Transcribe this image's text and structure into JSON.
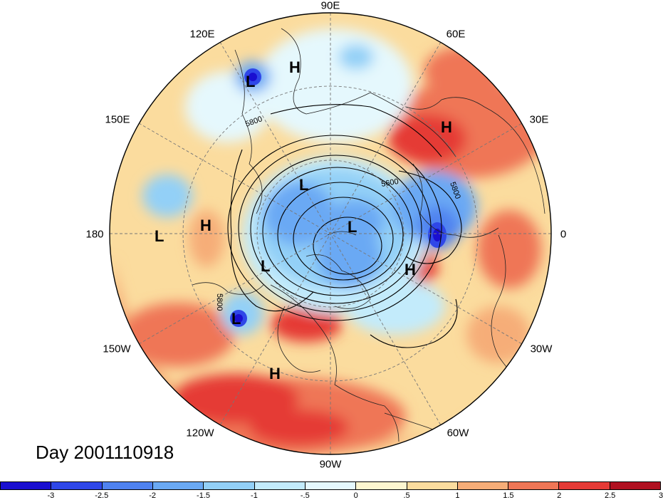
{
  "title": "Day 2001110918",
  "longitude_labels": {
    "deg90E": "90E",
    "deg120E": "120E",
    "deg60E": "60E",
    "deg150E": "150E",
    "deg30E": "30E",
    "deg180": "180",
    "deg0": "0",
    "deg150W": "150W",
    "deg30W": "30W",
    "deg120W": "120W",
    "deg60W": "60W",
    "deg90W": "90W"
  },
  "contour_labels": [
    "5800",
    "5800",
    "5600",
    "5800"
  ],
  "pressure_centers": [
    {
      "type": "L"
    },
    {
      "type": "H"
    },
    {
      "type": "H"
    },
    {
      "type": "L"
    },
    {
      "type": "L"
    },
    {
      "type": "H"
    },
    {
      "type": "L"
    },
    {
      "type": "L"
    },
    {
      "type": "H"
    },
    {
      "type": "L"
    },
    {
      "type": "H"
    }
  ],
  "colorbar": {
    "ticks": [
      "-3",
      "-2.5",
      "-2",
      "-1.5",
      "-1",
      "-.5",
      "0",
      ".5",
      "1",
      "1.5",
      "2",
      "2.5",
      "3"
    ],
    "colors": [
      "#1a0fd0",
      "#2f47e8",
      "#4f82f0",
      "#6aa9f4",
      "#93d0f7",
      "#c3ebfb",
      "#e5f8fd",
      "#fdf6d0",
      "#fbdc9e",
      "#f6ad78",
      "#ef7656",
      "#e53a36",
      "#b01020"
    ]
  }
}
